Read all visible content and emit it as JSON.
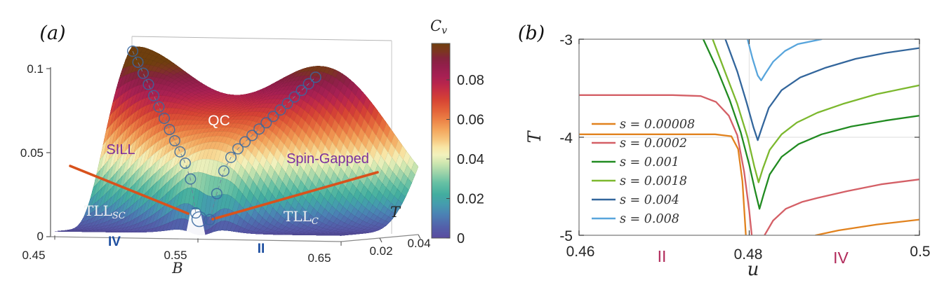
{
  "figure": {
    "background": "#ffffff"
  },
  "panel_a": {
    "panel_label": "(a)",
    "axes": {
      "z_ticks": [
        "0.1",
        "0.05",
        "0"
      ],
      "b_ticks": [
        "0.45",
        "0.55",
        "0.65"
      ],
      "b_label": "B",
      "t_ticks": [
        "0.02",
        "0.04"
      ],
      "t_label": "T"
    },
    "colorbar": {
      "title_main": "C",
      "title_sub": "v",
      "ticks": [
        "0.08",
        "0.06",
        "0.04",
        "0.02",
        "0"
      ]
    },
    "regions": {
      "qc": "QC",
      "sill": "SILL",
      "spin_gapped": "Spin-Gapped",
      "tll_sc_main": "TLL",
      "tll_sc_sub": "SC",
      "tll_c_main": "TLL",
      "tll_c_sub": "C",
      "phase_left": "IV",
      "phase_right": "II"
    }
  },
  "panel_b": {
    "panel_label": "(b)",
    "axes": {
      "x_label": "u",
      "y_label": "T",
      "x_ticks": [
        "0.46",
        "0.48",
        "0.5"
      ],
      "y_ticks": [
        "-3",
        "-4",
        "-5"
      ]
    },
    "regions": {
      "left": "II",
      "right": "IV"
    },
    "legend": [
      {
        "label": "s = 0.00008",
        "color": "#e1821e"
      },
      {
        "label": "s = 0.0002",
        "color": "#d45f66"
      },
      {
        "label": "s = 0.001",
        "color": "#218b21"
      },
      {
        "label": "s = 0.0018",
        "color": "#7cb82e"
      },
      {
        "label": "s = 0.004",
        "color": "#33669c"
      },
      {
        "label": "s = 0.008",
        "color": "#58a5dc"
      }
    ]
  },
  "chart_data": [
    {
      "panel": "a",
      "type": "heatmap",
      "subtype": "3d-surface",
      "title": "",
      "xlabel": "B",
      "ylabel": "T",
      "zlabel": "Cv",
      "x_range": [
        0.45,
        0.65
      ],
      "t_range": [
        0,
        0.04
      ],
      "z_range": [
        0,
        0.1
      ],
      "x_tick_values": [
        0.45,
        0.55,
        0.65
      ],
      "t_tick_values": [
        0.02,
        0.04
      ],
      "z_tick_values": [
        0,
        0.05,
        0.1
      ],
      "colorbar_tick_values": [
        0.08,
        0.06,
        0.04,
        0.02,
        0
      ],
      "colorbar_max": 0.0984,
      "colormap_stops": [
        [
          0.0,
          "#5a4b9f"
        ],
        [
          0.006,
          "#5262ab"
        ],
        [
          0.012,
          "#4b82b4"
        ],
        [
          0.017,
          "#459cae"
        ],
        [
          0.022,
          "#42ad9f"
        ],
        [
          0.028,
          "#67c1a4"
        ],
        [
          0.033,
          "#9cd3a9"
        ],
        [
          0.038,
          "#cfe7b0"
        ],
        [
          0.042,
          "#f2f1bd"
        ],
        [
          0.046,
          "#f8e5a4"
        ],
        [
          0.05,
          "#f6c57d"
        ],
        [
          0.055,
          "#f3a45b"
        ],
        [
          0.06,
          "#ec8045"
        ],
        [
          0.065,
          "#e25f38"
        ],
        [
          0.07,
          "#d64334"
        ],
        [
          0.074,
          "#c93241"
        ],
        [
          0.078,
          "#b8254c"
        ],
        [
          0.082,
          "#a62053"
        ],
        [
          0.087,
          "#931f4b"
        ],
        [
          0.091,
          "#84243c"
        ],
        [
          0.0945,
          "#7c3620"
        ],
        [
          0.0984,
          "#6f3f0e"
        ]
      ],
      "surface_model": {
        "Bc": 0.552,
        "amplitude_peak": 0.105,
        "amplitude_exp": 0.8,
        "left_ridge_slope": 2.6,
        "left_width0": 0.025,
        "left_width1": 1.35,
        "left_amp": 1.0,
        "right_ridge_slope": 0.88,
        "right_width0": 0.018,
        "right_width1": 1.2,
        "right_amp": 0.86,
        "valley_depth": 0.92,
        "valley_width": 0.012,
        "valley_Tscale": 0.005,
        "base_offset": 0.0015
      },
      "ridge_markers": {
        "left_chain": {
          "T_start": 0.038,
          "T_end": 0.0028,
          "count": 13
        },
        "right_chain": {
          "T_start": 0.0028,
          "T_end": 0.036,
          "count": 16
        },
        "marker": "open-circle",
        "color": "#38679f"
      },
      "crossover_lines_color": "#d8521c"
    },
    {
      "panel": "b",
      "type": "line",
      "title": "",
      "xlabel": "u",
      "ylabel": "T",
      "xlim": [
        0.46,
        0.5
      ],
      "ylim": [
        -5,
        -3
      ],
      "x_tick_values": [
        0.46,
        0.48,
        0.5
      ],
      "y_tick_values": [
        -3,
        -4,
        -5
      ],
      "grid_x": [
        0.48
      ],
      "grid_y": [
        -4
      ],
      "legend_position": "left-middle-inside",
      "series": [
        {
          "name": "s = 0.00008",
          "color": "#e1821e",
          "segments": [
            [
              [
                0.46,
                -3.97
              ],
              [
                0.47,
                -3.97
              ],
              [
                0.476,
                -3.97
              ],
              [
                0.4779,
                -3.99
              ],
              [
                0.4787,
                -4.12
              ],
              [
                0.4792,
                -4.45
              ],
              [
                0.4796,
                -5.0
              ]
            ],
            [
              [
                0.4878,
                -5.0
              ],
              [
                0.4905,
                -4.95
              ],
              [
                0.495,
                -4.89
              ],
              [
                0.5,
                -4.84
              ]
            ]
          ]
        },
        {
          "name": "s = 0.0002",
          "color": "#d45f66",
          "segments": [
            [
              [
                0.46,
                -3.57
              ],
              [
                0.471,
                -3.57
              ],
              [
                0.4743,
                -3.58
              ],
              [
                0.4761,
                -3.64
              ],
              [
                0.4776,
                -3.78
              ],
              [
                0.4786,
                -3.98
              ],
              [
                0.4794,
                -4.35
              ],
              [
                0.48,
                -4.75
              ],
              [
                0.4803,
                -5.0
              ]
            ],
            [
              [
                0.4818,
                -5.0
              ],
              [
                0.4828,
                -4.85
              ],
              [
                0.4843,
                -4.73
              ],
              [
                0.4862,
                -4.66
              ],
              [
                0.488,
                -4.62
              ],
              [
                0.4915,
                -4.55
              ],
              [
                0.4955,
                -4.48
              ],
              [
                0.5,
                -4.43
              ]
            ]
          ]
        },
        {
          "name": "s = 0.001",
          "color": "#218b21",
          "segments": [
            [
              [
                0.4746,
                -3.0
              ],
              [
                0.4762,
                -3.3
              ],
              [
                0.4777,
                -3.62
              ],
              [
                0.479,
                -3.95
              ],
              [
                0.48,
                -4.28
              ],
              [
                0.4807,
                -4.55
              ],
              [
                0.4812,
                -4.73
              ],
              [
                0.4817,
                -4.58
              ],
              [
                0.4824,
                -4.38
              ],
              [
                0.4838,
                -4.2
              ],
              [
                0.4858,
                -4.07
              ],
              [
                0.4885,
                -3.97
              ],
              [
                0.492,
                -3.89
              ],
              [
                0.496,
                -3.83
              ],
              [
                0.5,
                -3.78
              ]
            ]
          ]
        },
        {
          "name": "s = 0.0018",
          "color": "#7cb82e",
          "segments": [
            [
              [
                0.4757,
                -3.0
              ],
              [
                0.4771,
                -3.32
              ],
              [
                0.4786,
                -3.66
              ],
              [
                0.4798,
                -4.0
              ],
              [
                0.4806,
                -4.3
              ],
              [
                0.4811,
                -4.46
              ],
              [
                0.4816,
                -4.32
              ],
              [
                0.4824,
                -4.13
              ],
              [
                0.4838,
                -3.97
              ],
              [
                0.4856,
                -3.85
              ],
              [
                0.488,
                -3.75
              ],
              [
                0.491,
                -3.66
              ],
              [
                0.495,
                -3.56
              ],
              [
                0.5,
                -3.47
              ]
            ]
          ]
        },
        {
          "name": "s = 0.004",
          "color": "#33669c",
          "segments": [
            [
              [
                0.4772,
                -3.0
              ],
              [
                0.4786,
                -3.33
              ],
              [
                0.4797,
                -3.65
              ],
              [
                0.4805,
                -3.9
              ],
              [
                0.481,
                -4.03
              ],
              [
                0.4815,
                -3.9
              ],
              [
                0.4823,
                -3.7
              ],
              [
                0.4838,
                -3.52
              ],
              [
                0.486,
                -3.39
              ],
              [
                0.489,
                -3.29
              ],
              [
                0.4925,
                -3.2
              ],
              [
                0.496,
                -3.14
              ],
              [
                0.5,
                -3.09
              ]
            ]
          ]
        },
        {
          "name": "s = 0.008",
          "color": "#58a5dc",
          "segments": [
            [
              [
                0.4798,
                -3.0
              ],
              [
                0.4804,
                -3.2
              ],
              [
                0.481,
                -3.37
              ],
              [
                0.4814,
                -3.42
              ],
              [
                0.4819,
                -3.35
              ],
              [
                0.4828,
                -3.23
              ],
              [
                0.4842,
                -3.12
              ],
              [
                0.4857,
                -3.05
              ],
              [
                0.4885,
                -3.0
              ]
            ]
          ]
        }
      ]
    }
  ]
}
